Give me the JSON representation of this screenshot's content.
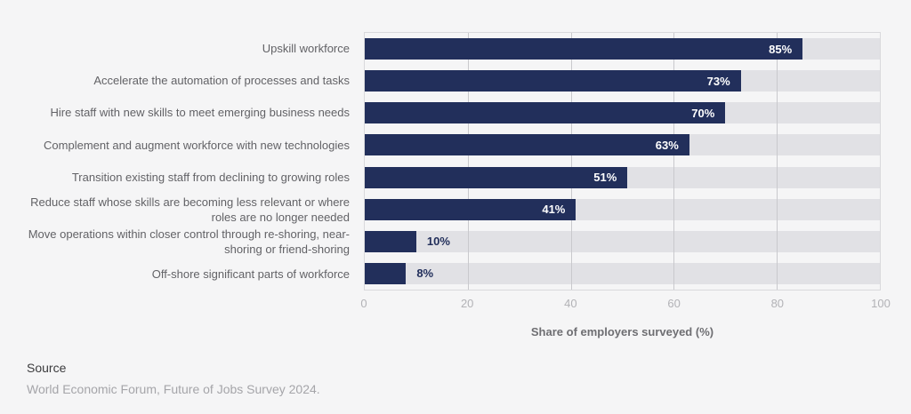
{
  "chart_data": {
    "type": "bar",
    "orientation": "horizontal",
    "title": "",
    "categories": [
      "Upskill workforce",
      "Accelerate the automation of processes and tasks",
      "Hire staff with new skills to meet emerging business needs",
      "Complement and augment workforce with new technologies",
      "Transition existing staff from declining to growing roles",
      "Reduce staff whose skills are becoming less relevant or where roles are no longer needed",
      "Move operations within closer control through re-shoring, near-shoring or friend-shoring",
      "Off-shore significant parts of workforce"
    ],
    "values": [
      85,
      73,
      70,
      63,
      51,
      41,
      10,
      8
    ],
    "value_labels": [
      "85%",
      "73%",
      "70%",
      "63%",
      "51%",
      "41%",
      "10%",
      "8%"
    ],
    "value_label_inside_threshold": 20,
    "xlabel": "Share of employers surveyed (%)",
    "x_ticks": [
      0,
      20,
      40,
      60,
      80,
      100
    ],
    "xlim": [
      0,
      100
    ],
    "grid": true,
    "legend": false,
    "colors": {
      "bar": "#222f5b",
      "track": "#e1e1e5",
      "gridline": "#c9c9cd",
      "plot_border": "#d9d9dc",
      "background": "#f5f5f6",
      "value_label_inside": "#ffffff",
      "value_label_outside": "#222f5b",
      "category_label": "#626266",
      "tick_label": "#b2b2b6",
      "axis_title": "#6e6e72"
    }
  },
  "source": {
    "label": "Source",
    "text": "World Economic Forum, Future of Jobs Survey 2024."
  }
}
